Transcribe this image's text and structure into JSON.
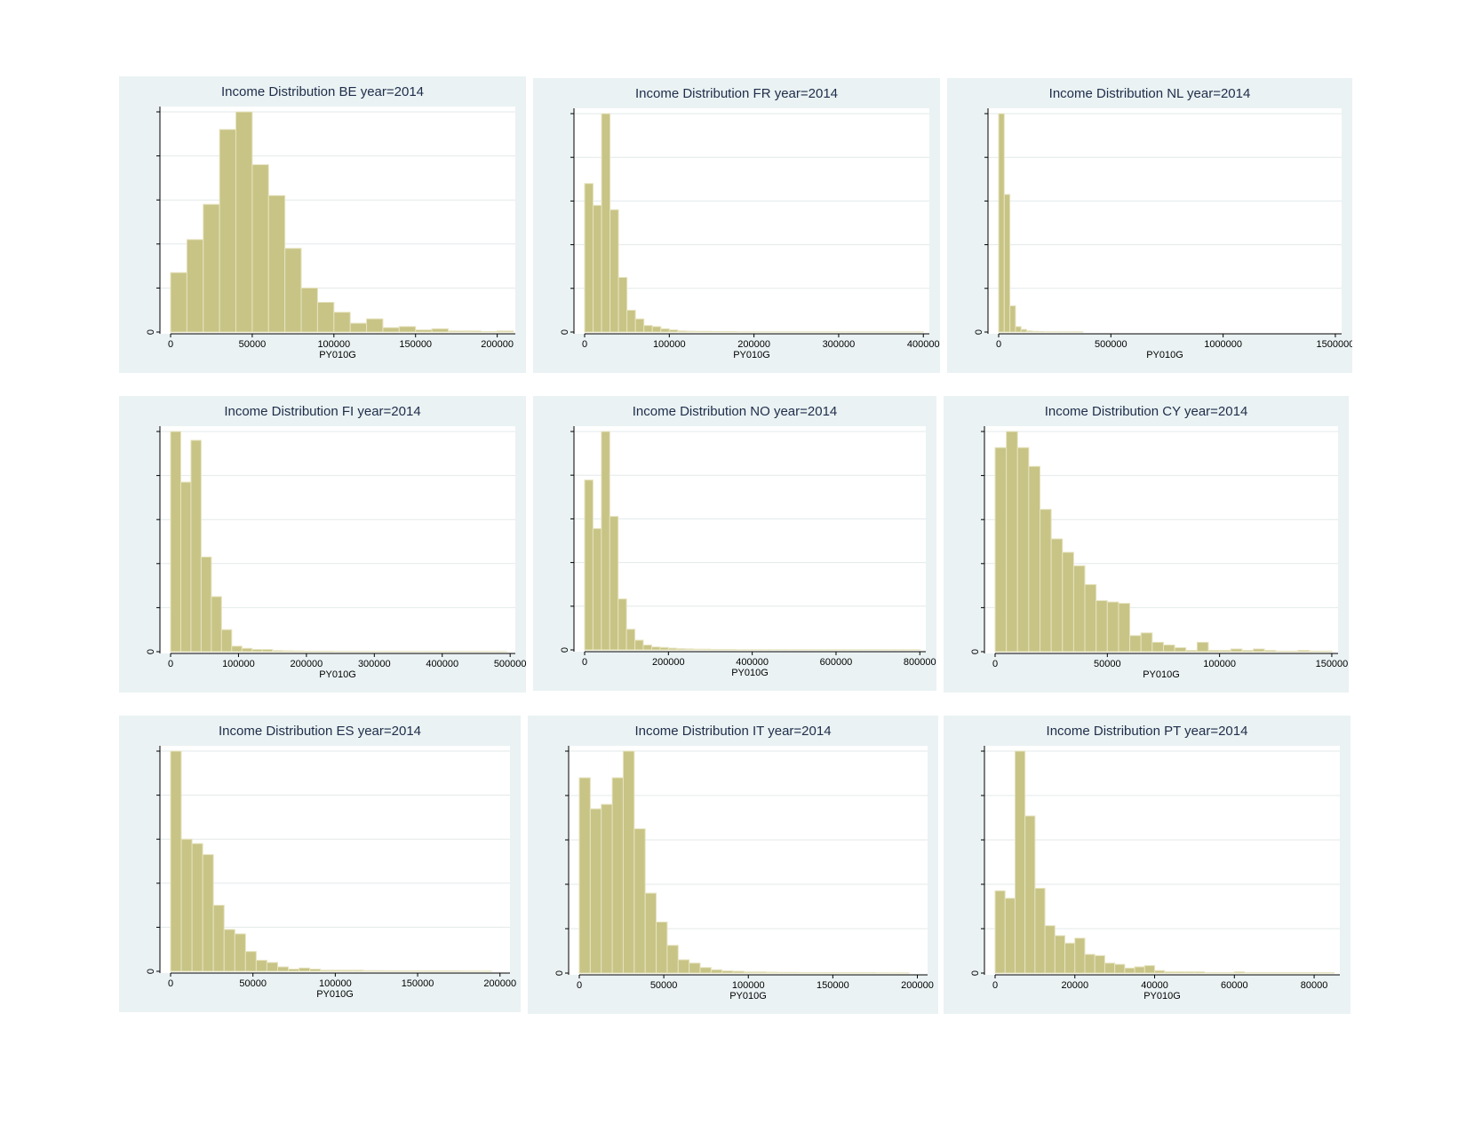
{
  "colors": {
    "bar_fill": "#c8c486",
    "bar_stroke": "#e6e3bf",
    "panel_bg": "#eaf2f3",
    "grid": "#e3e9ea",
    "plot_bg": "#ffffff"
  },
  "chart_data": [
    {
      "type": "bar",
      "title": "Income Distribution BE year=2014",
      "xlabel": "PY010G",
      "ylabel": "",
      "bin_start": 0,
      "bin_width": 10000,
      "xlim": [
        0,
        210000
      ],
      "xticks": [
        0,
        50000,
        100000,
        150000,
        200000
      ],
      "xtick_labels": [
        "0",
        "50000",
        "100000",
        "150000",
        "200000"
      ],
      "ytick_labels": [
        "0"
      ],
      "grid": true,
      "values": [
        2.7,
        4.2,
        5.8,
        9.2,
        10,
        7.6,
        6.2,
        3.8,
        2.0,
        1.35,
        0.9,
        0.4,
        0.6,
        0.2,
        0.25,
        0.1,
        0.15,
        0.05,
        0.05,
        0.02,
        0.05
      ]
    },
    {
      "type": "bar",
      "title": "Income Distribution FR year=2014",
      "xlabel": "PY010G",
      "ylabel": "",
      "bin_start": 0,
      "bin_width": 10000,
      "xlim": [
        0,
        405000
      ],
      "xticks": [
        0,
        100000,
        200000,
        300000,
        400000
      ],
      "xtick_labels": [
        "0",
        "100000",
        "200000",
        "300000",
        "400000"
      ],
      "ytick_labels": [
        "0"
      ],
      "grid": true,
      "values": [
        6.8,
        5.8,
        10,
        5.6,
        2.5,
        1.0,
        0.6,
        0.3,
        0.25,
        0.15,
        0.1,
        0.05,
        0.04,
        0.03,
        0.03,
        0.02,
        0.02,
        0.02,
        0.01,
        0.01,
        0.01,
        0.01,
        0.01,
        0.01,
        0.01,
        0.01,
        0.01,
        0.01,
        0.01,
        0.01,
        0.01,
        0.01,
        0.01,
        0.01,
        0.01,
        0.01,
        0.01,
        0.01,
        0.01,
        0.01
      ]
    },
    {
      "type": "bar",
      "title": "Income Distribution NL year=2014",
      "xlabel": "PY010G",
      "ylabel": "",
      "bin_start": 0,
      "bin_width": 25000,
      "xlim": [
        0,
        1520000
      ],
      "xticks": [
        0,
        500000,
        1000000,
        1500000
      ],
      "xtick_labels": [
        "0",
        "500000",
        "1000000",
        "1500000"
      ],
      "ytick_labels": [
        "0"
      ],
      "grid": true,
      "values": [
        10,
        6.3,
        1.2,
        0.25,
        0.12,
        0.05,
        0.03,
        0.02,
        0.01,
        0.01,
        0.01,
        0.01,
        0.01,
        0.01,
        0.01
      ]
    },
    {
      "type": "bar",
      "title": "Income Distribution FI year=2014",
      "xlabel": "PY010G",
      "ylabel": "",
      "bin_start": 0,
      "bin_width": 15000,
      "xlim": [
        0,
        505000
      ],
      "xticks": [
        0,
        100000,
        200000,
        300000,
        400000,
        500000
      ],
      "xtick_labels": [
        "0",
        "100000",
        "200000",
        "300000",
        "400000",
        "500000"
      ],
      "ytick_labels": [
        "0"
      ],
      "grid": true,
      "values": [
        10,
        7.7,
        9.6,
        4.3,
        2.5,
        1.0,
        0.25,
        0.15,
        0.1,
        0.1,
        0.05,
        0.04,
        0.03,
        0.02,
        0.02,
        0.02,
        0.01,
        0.01,
        0.01,
        0.01,
        0.01,
        0.01,
        0.01,
        0.01,
        0.01,
        0.01,
        0.01,
        0.01,
        0.01,
        0.01,
        0.01,
        0.01,
        0.01
      ]
    },
    {
      "type": "bar",
      "title": "Income Distribution NO year=2014",
      "xlabel": "PY010G",
      "ylabel": "",
      "bin_start": 0,
      "bin_width": 20000,
      "xlim": [
        0,
        810000
      ],
      "xticks": [
        0,
        200000,
        400000,
        600000,
        800000
      ],
      "xtick_labels": [
        "0",
        "200000",
        "400000",
        "600000",
        "800000"
      ],
      "ytick_labels": [
        "0"
      ],
      "grid": true,
      "values": [
        7.0,
        5.0,
        9.0,
        5.5,
        2.1,
        0.85,
        0.4,
        0.2,
        0.12,
        0.1,
        0.07,
        0.05,
        0.04,
        0.03,
        0.03,
        0.02,
        0.02,
        0.02,
        0.01,
        0.01,
        0.01,
        0.01,
        0.01,
        0.01,
        0.01,
        0.01,
        0.01,
        0.01,
        0.01,
        0.01,
        0.01,
        0.01,
        0.01,
        0.01,
        0.01,
        0.01,
        0.01,
        0.01,
        0.01,
        0.01
      ]
    },
    {
      "type": "bar",
      "title": "Income Distribution CY year=2014",
      "xlabel": "PY010G",
      "ylabel": "",
      "bin_start": 0,
      "bin_width": 5000,
      "xlim": [
        0,
        152000
      ],
      "xticks": [
        0,
        50000,
        100000,
        150000
      ],
      "xtick_labels": [
        "0",
        "50000",
        "100000",
        "150000"
      ],
      "ytick_labels": [
        "0"
      ],
      "grid": true,
      "values": [
        7.6,
        8.2,
        7.6,
        6.9,
        5.3,
        4.2,
        3.7,
        3.2,
        2.5,
        1.9,
        1.85,
        1.8,
        0.6,
        0.7,
        0.35,
        0.25,
        0.15,
        0.05,
        0.35,
        0.05,
        0.05,
        0.1,
        0.05,
        0.1,
        0.05,
        0.02,
        0.02,
        0.05,
        0.02,
        0.02
      ]
    },
    {
      "type": "bar",
      "title": "Income Distribution ES year=2014",
      "xlabel": "PY010G",
      "ylabel": "",
      "bin_start": 0,
      "bin_width": 6500,
      "xlim": [
        0,
        205000
      ],
      "xticks": [
        0,
        50000,
        100000,
        150000,
        200000
      ],
      "xtick_labels": [
        "0",
        "50000",
        "100000",
        "150000",
        "200000"
      ],
      "ytick_labels": [
        "0"
      ],
      "grid": true,
      "values": [
        10,
        6.0,
        5.8,
        5.3,
        3.0,
        1.9,
        1.7,
        0.9,
        0.5,
        0.4,
        0.2,
        0.1,
        0.15,
        0.1,
        0.05,
        0.05,
        0.05,
        0.05,
        0.03,
        0.03,
        0.02,
        0.02,
        0.02,
        0.02,
        0.02,
        0.02,
        0.02,
        0.01,
        0.01,
        0.01
      ]
    },
    {
      "type": "bar",
      "title": "Income Distribution IT year=2014",
      "xlabel": "PY010G",
      "ylabel": "",
      "bin_start": 0,
      "bin_width": 6500,
      "xlim": [
        0,
        205000
      ],
      "xticks": [
        0,
        50000,
        100000,
        150000,
        200000
      ],
      "xtick_labels": [
        "0",
        "50000",
        "100000",
        "150000",
        "200000"
      ],
      "ytick_labels": [
        "0"
      ],
      "grid": true,
      "values": [
        8.8,
        7.4,
        7.6,
        8.8,
        10,
        6.5,
        3.6,
        2.3,
        1.25,
        0.6,
        0.45,
        0.25,
        0.15,
        0.1,
        0.08,
        0.05,
        0.05,
        0.04,
        0.03,
        0.03,
        0.02,
        0.02,
        0.02,
        0.02,
        0.02,
        0.02,
        0.02,
        0.01,
        0.01,
        0.01
      ]
    },
    {
      "type": "bar",
      "title": "Income Distribution PT year=2014",
      "xlabel": "PY010G",
      "ylabel": "",
      "bin_start": 0,
      "bin_width": 2500,
      "xlim": [
        0,
        86000
      ],
      "xticks": [
        0,
        20000,
        40000,
        60000,
        80000
      ],
      "xtick_labels": [
        "0",
        "20000",
        "40000",
        "60000",
        "80000"
      ],
      "ytick_labels": [
        "0"
      ],
      "grid": true,
      "values": [
        3.3,
        3.0,
        8.9,
        6.3,
        3.4,
        1.9,
        1.5,
        1.2,
        1.4,
        0.75,
        0.7,
        0.4,
        0.35,
        0.2,
        0.25,
        0.3,
        0.1,
        0.05,
        0.05,
        0.05,
        0.05,
        0.02,
        0.02,
        0.02,
        0.05,
        0.02,
        0.02,
        0.02,
        0.02,
        0.02,
        0.02,
        0.02,
        0.02,
        0.02
      ]
    }
  ]
}
